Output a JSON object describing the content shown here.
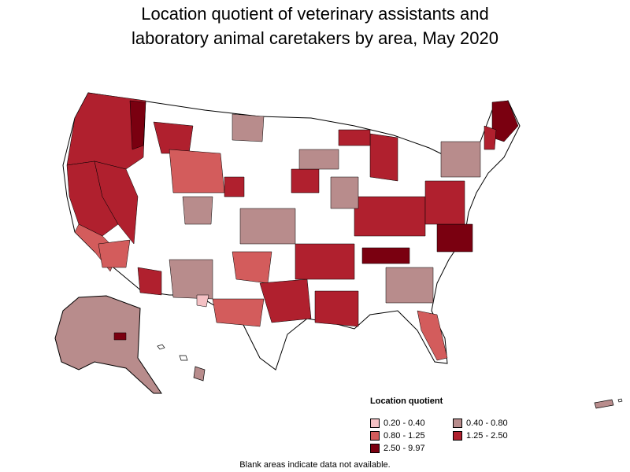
{
  "title_line1": "Location quotient of veterinary assistants and",
  "title_line2": "laboratory animal caretakers by area, May 2020",
  "legend": {
    "title": "Location quotient",
    "items": [
      {
        "label": "0.20 - 0.40",
        "color": "#f4c1c4"
      },
      {
        "label": "0.40 - 0.80",
        "color": "#b88c8c"
      },
      {
        "label": "0.80 - 1.25",
        "color": "#d35c5c"
      },
      {
        "label": "1.25 - 2.50",
        "color": "#b0202e"
      },
      {
        "label": "2.50 - 9.97",
        "color": "#7a0010"
      }
    ]
  },
  "note": "Blank areas indicate data not available."
}
